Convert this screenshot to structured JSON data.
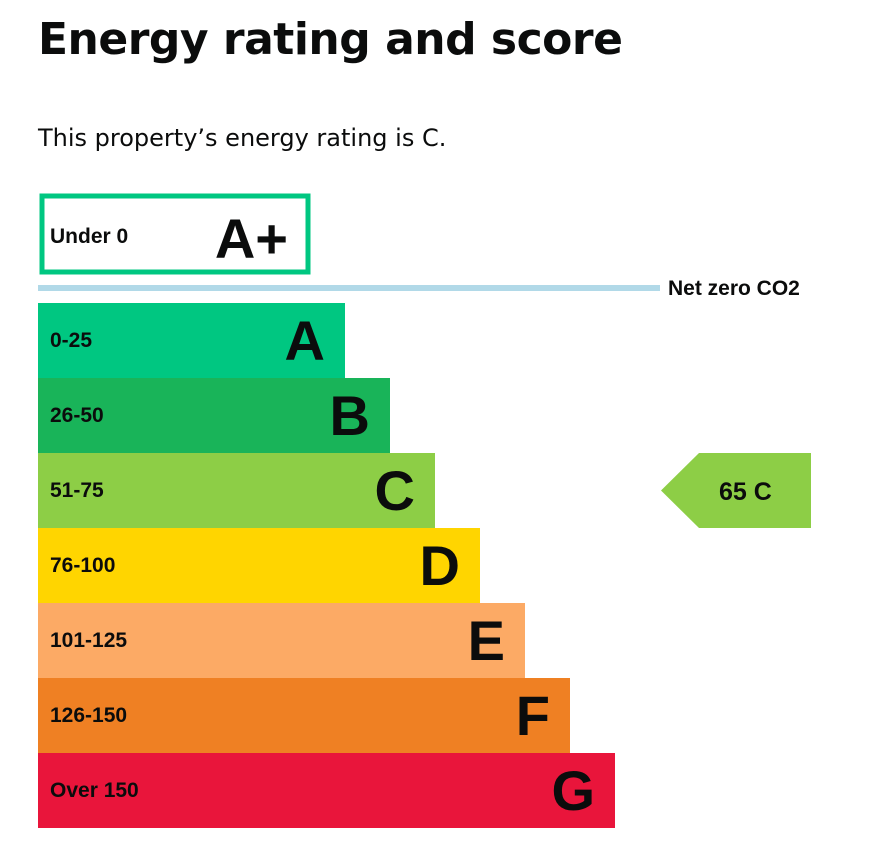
{
  "page": {
    "title": "Energy rating and score",
    "summary": "This property’s energy rating is C."
  },
  "chart_data": {
    "type": "bar",
    "title": "",
    "bands": [
      {
        "letter": "A+",
        "range": "Under 0",
        "color": "#00c781",
        "outlined": true
      },
      {
        "letter": "A",
        "range": "0-25",
        "color": "#00c781"
      },
      {
        "letter": "B",
        "range": "26-50",
        "color": "#19b459"
      },
      {
        "letter": "C",
        "range": "51-75",
        "color": "#8dce46"
      },
      {
        "letter": "D",
        "range": "76-100",
        "color": "#ffd500"
      },
      {
        "letter": "E",
        "range": "101-125",
        "color": "#fcaa65"
      },
      {
        "letter": "F",
        "range": "126-150",
        "color": "#ef8023"
      },
      {
        "letter": "G",
        "range": "Over 150",
        "color": "#e9153b"
      }
    ],
    "net_zero": {
      "label": "Net zero CO2",
      "color": "#b1d9e8"
    },
    "current_rating": {
      "score": 65,
      "band": "C",
      "label": "65  C",
      "color": "#8dce46"
    }
  }
}
